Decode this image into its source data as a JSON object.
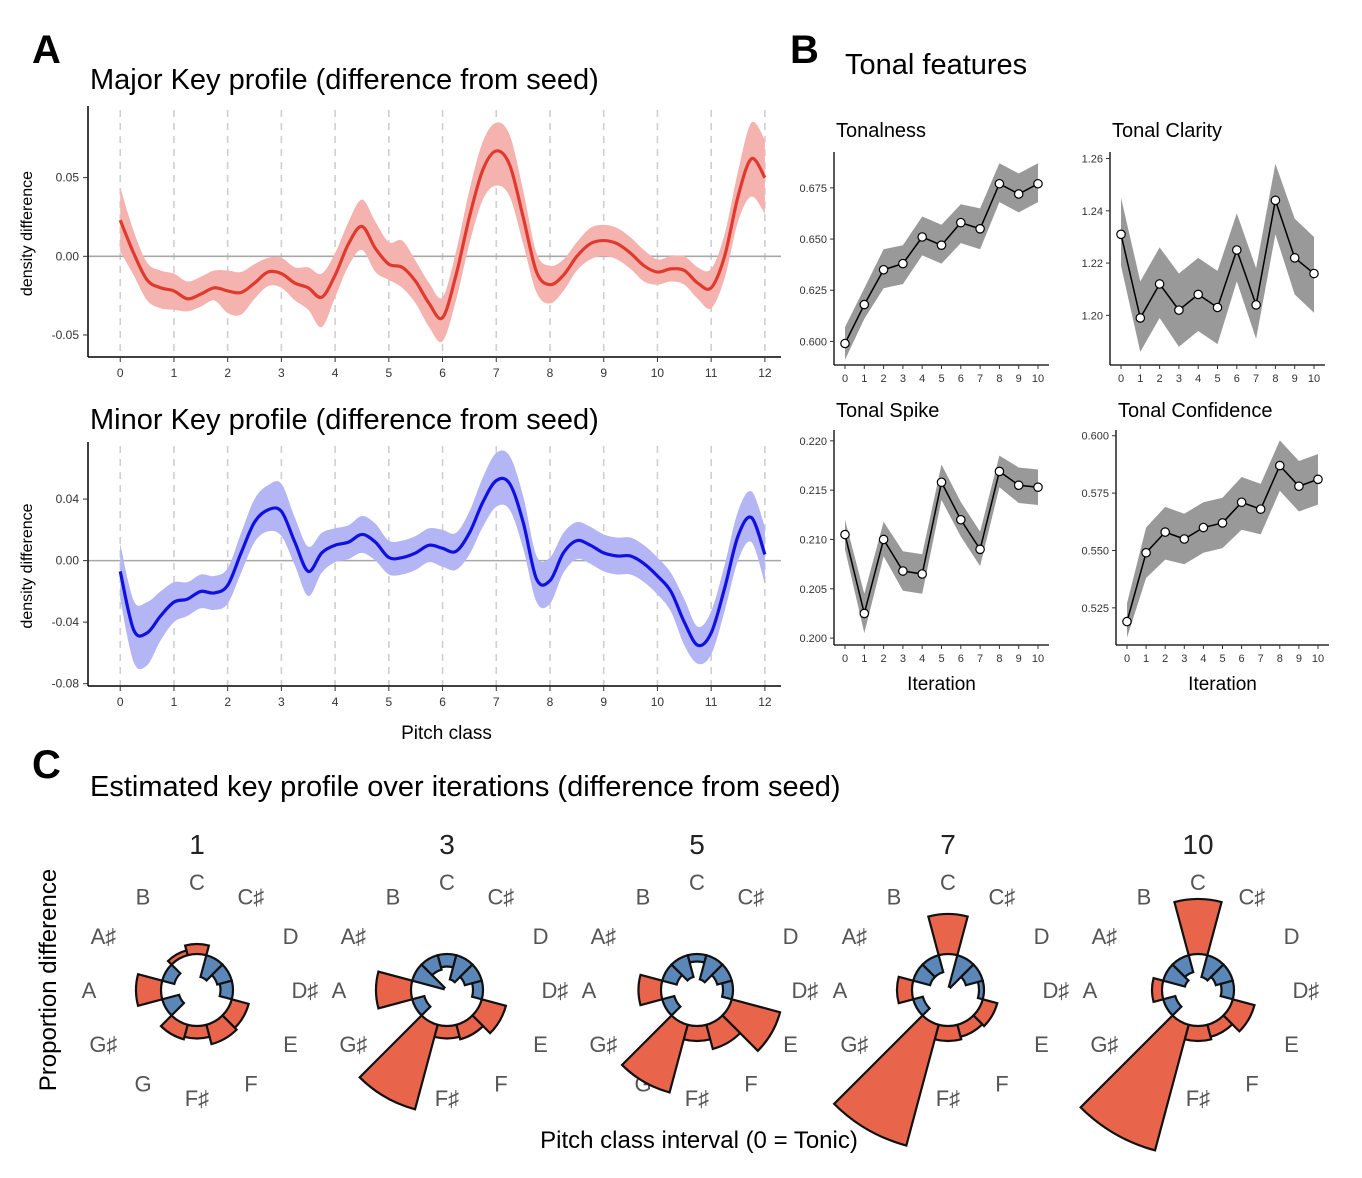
{
  "panels": {
    "A": {
      "letter": "A"
    },
    "B": {
      "letter": "B",
      "title": "Tonal features"
    },
    "C": {
      "letter": "C",
      "title": "Estimated key profile over iterations (difference from seed)"
    }
  },
  "chart_data": [
    {
      "id": "major",
      "type": "line",
      "title": "Major Key profile (difference from seed)",
      "xlabel": "",
      "ylabel": "density difference",
      "xlim": [
        -0.6,
        12.3
      ],
      "ylim": [
        -0.064,
        0.093
      ],
      "x_ticks": [
        0,
        1,
        2,
        3,
        4,
        5,
        6,
        7,
        8,
        9,
        10,
        11,
        12
      ],
      "y_ticks": [
        -0.05,
        0.0,
        0.05
      ],
      "y_tick_labels": [
        "-0.05",
        "0.00",
        "0.05"
      ],
      "color": "#e03a2f",
      "band_color": "#f4b3ae",
      "x": [
        0,
        0.25,
        0.5,
        0.75,
        1,
        1.25,
        1.5,
        1.75,
        2,
        2.25,
        2.5,
        2.75,
        3,
        3.25,
        3.5,
        3.75,
        4,
        4.25,
        4.5,
        4.75,
        5,
        5.25,
        5.5,
        5.75,
        6,
        6.25,
        6.5,
        6.75,
        7,
        7.25,
        7.5,
        7.75,
        8,
        8.25,
        8.5,
        8.75,
        9,
        9.25,
        9.5,
        9.75,
        10,
        10.25,
        10.5,
        10.75,
        11,
        11.25,
        11.5,
        11.75,
        12
      ],
      "y": [
        0.023,
        0.002,
        -0.015,
        -0.02,
        -0.022,
        -0.027,
        -0.024,
        -0.02,
        -0.022,
        -0.023,
        -0.017,
        -0.01,
        -0.011,
        -0.017,
        -0.02,
        -0.026,
        -0.012,
        0.008,
        0.019,
        0.005,
        -0.005,
        -0.007,
        -0.016,
        -0.03,
        -0.039,
        -0.012,
        0.025,
        0.055,
        0.067,
        0.058,
        0.025,
        -0.01,
        -0.018,
        -0.012,
        0.0,
        0.008,
        0.01,
        0.008,
        0.002,
        -0.006,
        -0.01,
        -0.008,
        -0.009,
        -0.017,
        -0.02,
        0.0,
        0.038,
        0.062,
        0.05
      ],
      "lower": [
        0.003,
        -0.012,
        -0.028,
        -0.033,
        -0.034,
        -0.035,
        -0.032,
        -0.028,
        -0.036,
        -0.037,
        -0.027,
        -0.019,
        -0.02,
        -0.028,
        -0.034,
        -0.045,
        -0.026,
        -0.006,
        0.004,
        -0.01,
        -0.015,
        -0.02,
        -0.03,
        -0.045,
        -0.054,
        -0.028,
        0.008,
        0.036,
        0.045,
        0.038,
        0.008,
        -0.023,
        -0.03,
        -0.022,
        -0.009,
        -0.002,
        0.0,
        -0.002,
        -0.008,
        -0.016,
        -0.018,
        -0.016,
        -0.018,
        -0.027,
        -0.033,
        -0.014,
        0.022,
        0.038,
        0.027
      ],
      "upper": [
        0.044,
        0.016,
        -0.004,
        -0.009,
        -0.011,
        -0.016,
        -0.013,
        -0.009,
        -0.009,
        -0.01,
        -0.005,
        -0.001,
        -0.001,
        -0.007,
        -0.007,
        -0.011,
        0.002,
        0.022,
        0.036,
        0.022,
        0.009,
        0.01,
        -0.003,
        -0.017,
        -0.026,
        0.003,
        0.042,
        0.073,
        0.085,
        0.077,
        0.042,
        0.002,
        -0.006,
        -0.002,
        0.009,
        0.018,
        0.02,
        0.018,
        0.012,
        0.004,
        -0.002,
        0.0,
        0.0,
        -0.007,
        -0.008,
        0.014,
        0.054,
        0.085,
        0.074
      ]
    },
    {
      "id": "minor",
      "type": "line",
      "title": "Minor Key profile (difference from seed)",
      "xlabel": "Pitch class",
      "ylabel": "density difference",
      "xlim": [
        -0.6,
        12.3
      ],
      "ylim": [
        -0.0815,
        0.0745
      ],
      "x_ticks": [
        0,
        1,
        2,
        3,
        4,
        5,
        6,
        7,
        8,
        9,
        10,
        11,
        12
      ],
      "y_ticks": [
        -0.08,
        -0.04,
        0.0,
        0.04
      ],
      "y_tick_labels": [
        "-0.08",
        "-0.04",
        "0.00",
        "0.04"
      ],
      "color": "#1010e0",
      "band_color": "#b3b5f5",
      "x": [
        0,
        0.25,
        0.5,
        0.75,
        1,
        1.25,
        1.5,
        1.75,
        2,
        2.25,
        2.5,
        2.75,
        3,
        3.25,
        3.5,
        3.75,
        4,
        4.25,
        4.5,
        4.75,
        5,
        5.25,
        5.5,
        5.75,
        6,
        6.25,
        6.5,
        6.75,
        7,
        7.25,
        7.5,
        7.75,
        8,
        8.25,
        8.5,
        8.75,
        9,
        9.25,
        9.5,
        9.75,
        10,
        10.25,
        10.5,
        10.75,
        11,
        11.25,
        11.5,
        11.75,
        12
      ],
      "y": [
        -0.007,
        -0.045,
        -0.047,
        -0.036,
        -0.027,
        -0.025,
        -0.02,
        -0.021,
        -0.016,
        0.005,
        0.025,
        0.033,
        0.032,
        0.012,
        -0.007,
        0.005,
        0.01,
        0.012,
        0.017,
        0.012,
        0.002,
        0.002,
        0.005,
        0.01,
        0.008,
        0.006,
        0.018,
        0.038,
        0.052,
        0.05,
        0.025,
        -0.012,
        -0.013,
        0.005,
        0.013,
        0.01,
        0.005,
        0.003,
        0.003,
        -0.002,
        -0.01,
        -0.02,
        -0.04,
        -0.055,
        -0.047,
        -0.018,
        0.016,
        0.028,
        0.004
      ],
      "lower": [
        -0.025,
        -0.066,
        -0.068,
        -0.052,
        -0.04,
        -0.036,
        -0.031,
        -0.032,
        -0.028,
        -0.008,
        0.012,
        0.019,
        0.016,
        -0.003,
        -0.023,
        -0.008,
        -0.001,
        0.001,
        0.005,
        0.0,
        -0.009,
        -0.009,
        -0.006,
        -0.001,
        -0.004,
        -0.006,
        0.004,
        0.022,
        0.035,
        0.033,
        0.008,
        -0.027,
        -0.028,
        -0.008,
        0.001,
        -0.002,
        -0.007,
        -0.009,
        -0.009,
        -0.014,
        -0.022,
        -0.033,
        -0.055,
        -0.067,
        -0.061,
        -0.033,
        0.0,
        0.012,
        -0.015
      ],
      "upper": [
        0.011,
        -0.026,
        -0.027,
        -0.02,
        -0.014,
        -0.014,
        -0.009,
        -0.01,
        -0.005,
        0.018,
        0.04,
        0.049,
        0.05,
        0.028,
        0.009,
        0.018,
        0.021,
        0.023,
        0.029,
        0.024,
        0.013,
        0.013,
        0.016,
        0.021,
        0.02,
        0.018,
        0.032,
        0.054,
        0.07,
        0.068,
        0.042,
        0.003,
        0.002,
        0.018,
        0.025,
        0.022,
        0.017,
        0.015,
        0.015,
        0.01,
        0.002,
        -0.008,
        -0.025,
        -0.043,
        -0.033,
        -0.003,
        0.032,
        0.045,
        0.022
      ]
    },
    {
      "id": "tonalness",
      "type": "line",
      "title": "Tonalness",
      "xlabel": "",
      "ylim": [
        0.5885,
        0.6925
      ],
      "y_ticks": [
        0.6,
        0.625,
        0.65,
        0.675
      ],
      "y_tick_labels": [
        "0.600",
        "0.625",
        "0.650",
        "0.675"
      ],
      "x": [
        0,
        1,
        2,
        3,
        4,
        5,
        6,
        7,
        8,
        9,
        10
      ],
      "y": [
        0.599,
        0.618,
        0.635,
        0.638,
        0.651,
        0.647,
        0.658,
        0.655,
        0.677,
        0.672,
        0.677
      ],
      "lower": [
        0.591,
        0.611,
        0.626,
        0.628,
        0.642,
        0.638,
        0.648,
        0.645,
        0.668,
        0.663,
        0.668
      ],
      "upper": [
        0.607,
        0.626,
        0.645,
        0.647,
        0.661,
        0.657,
        0.667,
        0.665,
        0.687,
        0.682,
        0.687
      ]
    },
    {
      "id": "clarity",
      "type": "line",
      "title": "Tonal Clarity",
      "xlabel": "",
      "ylim": [
        1.181,
        1.2625
      ],
      "y_ticks": [
        1.2,
        1.22,
        1.24,
        1.26
      ],
      "y_tick_labels": [
        "1.20",
        "1.22",
        "1.24",
        "1.26"
      ],
      "x": [
        0,
        1,
        2,
        3,
        4,
        5,
        6,
        7,
        8,
        9,
        10
      ],
      "y": [
        1.231,
        1.199,
        1.212,
        1.202,
        1.208,
        1.203,
        1.225,
        1.204,
        1.244,
        1.222,
        1.216
      ],
      "lower": [
        1.219,
        1.186,
        1.199,
        1.188,
        1.194,
        1.189,
        1.213,
        1.191,
        1.231,
        1.208,
        1.201
      ],
      "upper": [
        1.245,
        1.213,
        1.226,
        1.216,
        1.222,
        1.217,
        1.239,
        1.218,
        1.258,
        1.237,
        1.23
      ]
    },
    {
      "id": "spike",
      "type": "line",
      "title": "Tonal Spike",
      "xlabel": "Iteration",
      "ylim": [
        0.1993,
        0.2211
      ],
      "y_ticks": [
        0.2,
        0.205,
        0.21,
        0.215,
        0.22
      ],
      "y_tick_labels": [
        "0.200",
        "0.205",
        "0.210",
        "0.215",
        "0.220"
      ],
      "x": [
        0,
        1,
        2,
        3,
        4,
        5,
        6,
        7,
        8,
        9,
        10
      ],
      "y": [
        0.2105,
        0.2025,
        0.21,
        0.2068,
        0.2065,
        0.2158,
        0.212,
        0.209,
        0.2169,
        0.2155,
        0.2153
      ],
      "lower": [
        0.209,
        0.2005,
        0.2083,
        0.2048,
        0.2045,
        0.214,
        0.2103,
        0.2073,
        0.2153,
        0.2137,
        0.2135
      ],
      "upper": [
        0.212,
        0.2045,
        0.2118,
        0.2088,
        0.2085,
        0.2176,
        0.2138,
        0.2108,
        0.2185,
        0.2173,
        0.2171
      ]
    },
    {
      "id": "confidence",
      "type": "line",
      "title": "Tonal Confidence",
      "xlabel": "Iteration",
      "ylim": [
        0.5088,
        0.6025
      ],
      "y_ticks": [
        0.525,
        0.55,
        0.575,
        0.6
      ],
      "y_tick_labels": [
        "0.525",
        "0.550",
        "0.575",
        "0.600"
      ],
      "x": [
        0,
        1,
        2,
        3,
        4,
        5,
        6,
        7,
        8,
        9,
        10
      ],
      "y": [
        0.519,
        0.549,
        0.558,
        0.555,
        0.56,
        0.562,
        0.571,
        0.568,
        0.587,
        0.578,
        0.581
      ],
      "lower": [
        0.512,
        0.538,
        0.546,
        0.544,
        0.549,
        0.551,
        0.559,
        0.557,
        0.576,
        0.567,
        0.57
      ],
      "upper": [
        0.527,
        0.56,
        0.569,
        0.566,
        0.571,
        0.573,
        0.582,
        0.579,
        0.598,
        0.589,
        0.592
      ]
    },
    {
      "id": "polar",
      "type": "bar",
      "title": "Estimated key profile over iterations (difference from seed)",
      "xlabel": "Pitch class interval (0 = Tonic)",
      "ylabel": "Proportion difference",
      "categories": [
        "C",
        "C♯",
        "D",
        "D♯",
        "E",
        "F",
        "F♯",
        "G",
        "G♯",
        "A",
        "A♯",
        "B"
      ],
      "positive_color": "#e8654c",
      "negative_color": "#5b86b8",
      "facets": [
        {
          "label": "1",
          "values": [
            0.04,
            -0.09,
            -0.06,
            -0.05,
            0.07,
            0.08,
            0.05,
            0.06,
            -0.07,
            0.1,
            -0.05,
            0.02
          ]
        },
        {
          "label": "3",
          "values": [
            -0.05,
            -0.1,
            -0.07,
            -0.04,
            0.1,
            0.06,
            0.05,
            0.35,
            -0.05,
            0.14,
            -0.13,
            -0.06
          ]
        },
        {
          "label": "5",
          "values": [
            -0.03,
            -0.1,
            -0.06,
            -0.04,
            0.2,
            0.1,
            0.06,
            0.28,
            -0.05,
            0.09,
            -0.06,
            -0.09
          ]
        },
        {
          "label": "7",
          "values": [
            0.16,
            -0.13,
            -0.07,
            -0.02,
            0.06,
            0.05,
            0.06,
            0.5,
            -0.04,
            0.06,
            -0.07,
            -0.07
          ]
        },
        {
          "label": "10",
          "values": [
            0.22,
            -0.09,
            -0.07,
            -0.05,
            0.09,
            0.05,
            0.06,
            0.52,
            -0.05,
            0.04,
            -0.09,
            -0.07
          ]
        }
      ]
    }
  ]
}
